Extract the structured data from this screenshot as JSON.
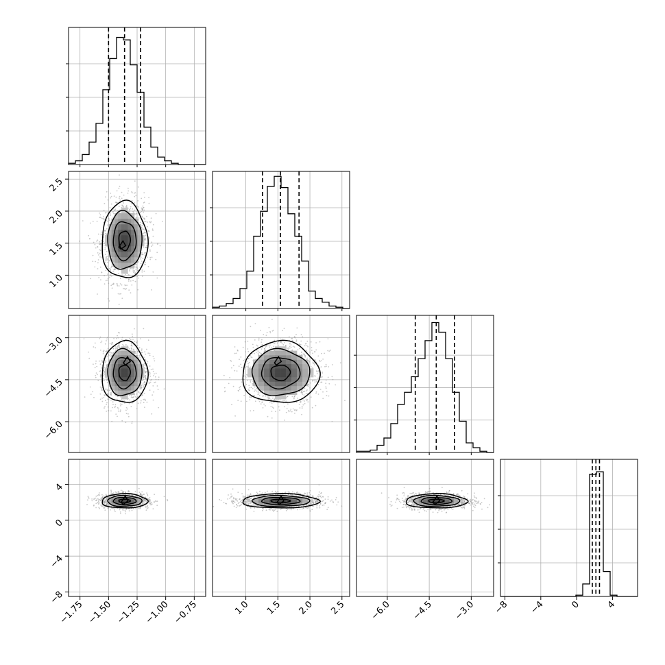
{
  "chart_data": {
    "type": "corner",
    "description_free": true,
    "n_params": 4,
    "params": [
      {
        "range": [
          -1.85,
          -0.65
        ],
        "ticks": [
          -1.75,
          -1.5,
          -1.25,
          -1.0,
          -0.75
        ],
        "tick_labels": [
          "−1.75",
          "−1.50",
          "−1.25",
          "−1.00",
          "−0.75"
        ],
        "quantiles": [
          -1.5,
          -1.36,
          -1.22
        ],
        "hist": {
          "edges": [
            -1.85,
            -1.79,
            -1.73,
            -1.67,
            -1.61,
            -1.55,
            -1.49,
            -1.43,
            -1.37,
            -1.31,
            -1.25,
            -1.19,
            -1.13,
            -1.07,
            -1.01,
            -0.95,
            -0.89,
            -0.83,
            -0.77,
            -0.71,
            -0.65
          ],
          "counts": [
            1,
            3,
            8,
            18,
            33,
            60,
            85,
            102,
            100,
            80,
            58,
            30,
            14,
            6,
            3,
            1,
            0,
            0,
            0,
            0
          ],
          "ymax": 110
        }
      },
      {
        "range": [
          0.48,
          2.62
        ],
        "ticks": [
          1.0,
          1.5,
          2.0,
          2.5
        ],
        "tick_labels": [
          "1.0",
          "1.5",
          "2.0",
          "2.5"
        ],
        "quantiles": [
          1.26,
          1.54,
          1.83
        ],
        "hist": {
          "edges": [
            0.48,
            0.587,
            0.694,
            0.801,
            0.908,
            1.015,
            1.122,
            1.229,
            1.336,
            1.443,
            1.55,
            1.657,
            1.764,
            1.871,
            1.978,
            2.085,
            2.192,
            2.299,
            2.406,
            2.513,
            2.62
          ],
          "counts": [
            1,
            2,
            4,
            8,
            16,
            30,
            58,
            78,
            98,
            106,
            97,
            76,
            58,
            38,
            14,
            8,
            5,
            2,
            1,
            0
          ],
          "ymax": 110
        }
      },
      {
        "range": [
          -7.1,
          -2.2
        ],
        "ticks": [
          -6.0,
          -4.5,
          -3.0
        ],
        "tick_labels": [
          "−6.0",
          "−4.5",
          "−3.0"
        ],
        "quantiles": [
          -5.0,
          -4.25,
          -3.6
        ],
        "hist": {
          "edges": [
            -7.1,
            -6.855,
            -6.61,
            -6.365,
            -6.12,
            -5.875,
            -5.63,
            -5.385,
            -5.14,
            -4.895,
            -4.65,
            -4.405,
            -4.16,
            -3.915,
            -3.67,
            -3.425,
            -3.18,
            -2.935,
            -2.69,
            -2.445,
            -2.2
          ],
          "counts": [
            1,
            1,
            2,
            6,
            12,
            24,
            40,
            50,
            63,
            78,
            93,
            108,
            100,
            78,
            50,
            26,
            8,
            4,
            1,
            0
          ],
          "ymax": 114
        }
      },
      {
        "range": [
          -8.5,
          6.8
        ],
        "ticks": [
          -8,
          -4,
          0,
          4
        ],
        "tick_labels": [
          "−8",
          "−4",
          "0",
          "4"
        ],
        "quantiles": [
          1.75,
          2.15,
          2.55
        ],
        "hist": {
          "edges": [
            -8.5,
            -7.735,
            -6.97,
            -6.205,
            -5.44,
            -4.675,
            -3.91,
            -3.145,
            -2.38,
            -1.615,
            -0.85,
            -0.085,
            0.68,
            1.445,
            2.21,
            2.975,
            3.74,
            4.505,
            5.27,
            6.035,
            6.8
          ],
          "counts": [
            0,
            0,
            0,
            0,
            0,
            0,
            0,
            0,
            0,
            0,
            0,
            1,
            10,
            98,
            100,
            20,
            1,
            0,
            0,
            0
          ],
          "ymax": 110
        }
      }
    ],
    "pairs": [
      {
        "x": 0,
        "y": 1,
        "mean": [
          -1.36,
          1.54
        ],
        "sd": [
          0.1,
          0.3
        ],
        "rho": 0.05,
        "peak": [
          -1.38,
          1.46
        ]
      },
      {
        "x": 0,
        "y": 2,
        "mean": [
          -1.36,
          -4.25
        ],
        "sd": [
          0.1,
          0.55
        ],
        "rho": 0.0,
        "peak": [
          -1.34,
          -3.85
        ]
      },
      {
        "x": 1,
        "y": 2,
        "mean": [
          1.54,
          -4.25
        ],
        "sd": [
          0.3,
          0.55
        ],
        "rho": 0.0,
        "peak": [
          1.5,
          -3.85
        ]
      },
      {
        "x": 0,
        "y": 3,
        "mean": [
          -1.36,
          2.15
        ],
        "sd": [
          0.1,
          0.4
        ],
        "rho": 0.0,
        "peak": [
          -1.36,
          2.15
        ]
      },
      {
        "x": 1,
        "y": 3,
        "mean": [
          1.54,
          2.15
        ],
        "sd": [
          0.3,
          0.4
        ],
        "rho": 0.0,
        "peak": [
          1.54,
          2.15
        ]
      },
      {
        "x": 2,
        "y": 3,
        "mean": [
          -4.25,
          2.15
        ],
        "sd": [
          0.55,
          0.4
        ],
        "rho": 0.0,
        "peak": [
          -4.25,
          2.15
        ]
      }
    ],
    "grid": true,
    "contour_levels_sigma": [
      0.5,
      1.0,
      1.5,
      2.0
    ],
    "colors": {
      "line": "#000000",
      "scatter": "#9a9a9a",
      "grid": "#b0b0b0",
      "frame": "#000000"
    }
  }
}
